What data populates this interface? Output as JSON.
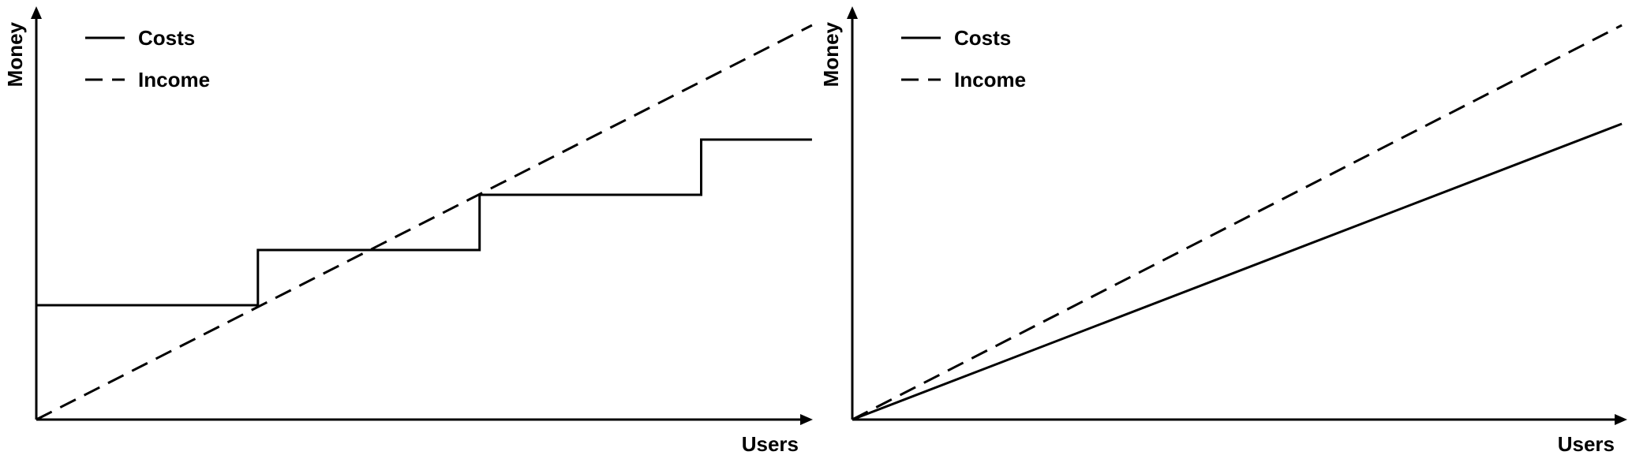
{
  "chart_data": [
    {
      "type": "line",
      "xlabel": "Users",
      "ylabel": "Money",
      "xlim": [
        0,
        100
      ],
      "ylim": [
        0,
        100
      ],
      "grid": false,
      "legend_position": "top-left",
      "series": [
        {
          "name": "Costs",
          "style": "solid",
          "shape": "step",
          "x": [
            0,
            28,
            28,
            56,
            56,
            84,
            84,
            98
          ],
          "y": [
            29,
            29,
            43,
            43,
            57,
            57,
            71,
            71
          ]
        },
        {
          "name": "Income",
          "style": "dashed",
          "shape": "linear",
          "x": [
            0,
            98
          ],
          "y": [
            0,
            100
          ]
        }
      ]
    },
    {
      "type": "line",
      "xlabel": "Users",
      "ylabel": "Money",
      "xlim": [
        0,
        100
      ],
      "ylim": [
        0,
        100
      ],
      "grid": false,
      "legend_position": "top-left",
      "series": [
        {
          "name": "Costs",
          "style": "solid",
          "shape": "linear",
          "x": [
            0,
            98
          ],
          "y": [
            0,
            75
          ]
        },
        {
          "name": "Income",
          "style": "dashed",
          "shape": "linear",
          "x": [
            0,
            98
          ],
          "y": [
            0,
            100
          ]
        }
      ]
    }
  ]
}
